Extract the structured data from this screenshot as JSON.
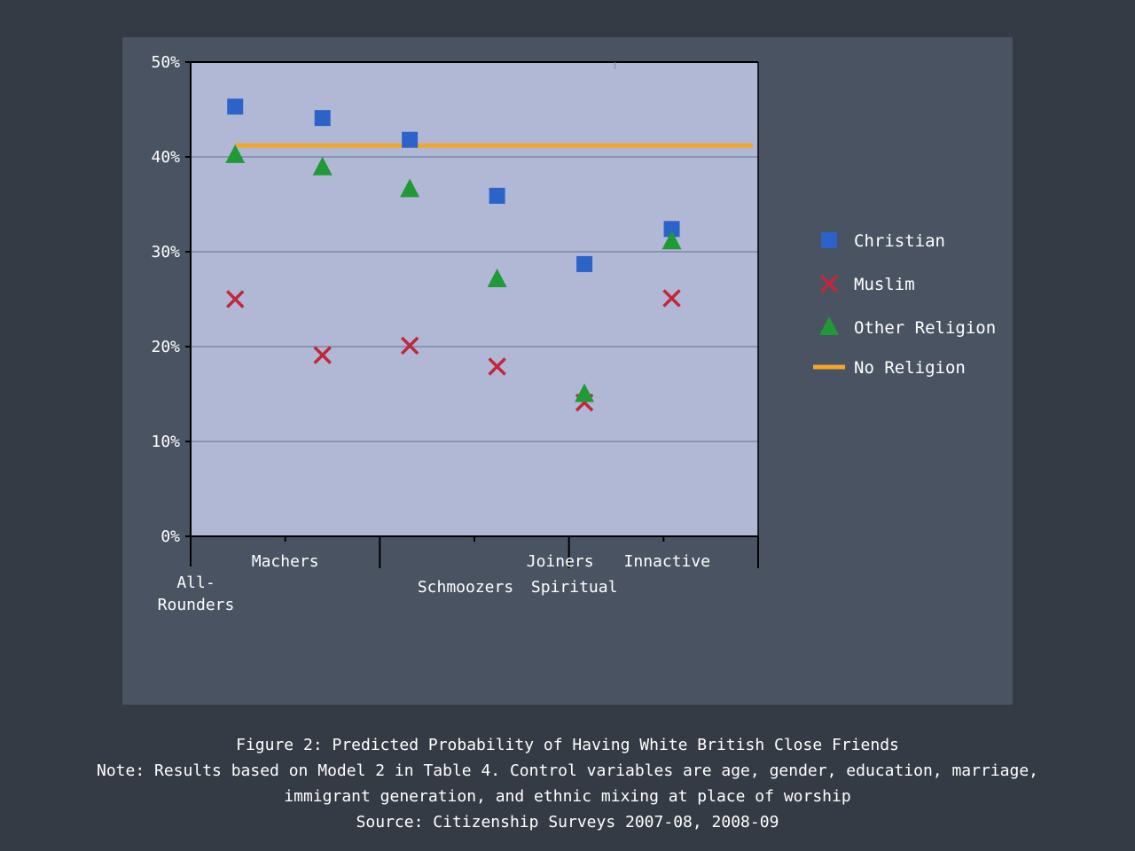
{
  "chart_data": {
    "type": "scatter",
    "categories": [
      "All-Rounders",
      "Machers",
      "Schmoozers",
      "Joiners",
      "Spiritual",
      "Inactive"
    ],
    "category_label_lines": [
      [
        "All-",
        "Rounders"
      ],
      [
        "Machers"
      ],
      [
        "Schmoozers"
      ],
      [
        "Joiners"
      ],
      [
        "Spiritual"
      ],
      [
        "Innactive"
      ]
    ],
    "ylim": [
      0,
      50
    ],
    "yticks": [
      "0%",
      "10%",
      "20%",
      "30%",
      "40%",
      "50%"
    ],
    "grid": true,
    "legend_position": "right",
    "series": [
      {
        "name": "Christian",
        "marker": "square",
        "color": "#2c63c9",
        "values": [
          45.3,
          44.1,
          41.8,
          35.9,
          28.7,
          32.4
        ]
      },
      {
        "name": "Muslim",
        "marker": "x",
        "color": "#c0283a",
        "values": [
          25.0,
          19.1,
          20.1,
          17.9,
          14.1,
          25.1
        ]
      },
      {
        "name": "Other Religion",
        "marker": "triangle",
        "color": "#1f9a36",
        "values": [
          40.2,
          38.9,
          36.6,
          27.1,
          15.0,
          31.1
        ]
      },
      {
        "name": "No Religion",
        "marker": "line",
        "color": "#f4a62a",
        "value": 41.2
      }
    ]
  },
  "caption": {
    "title": "Figure 2: Predicted Probability of Having White British Close Friends",
    "note_line1": "Note: Results based on Model 2 in Table 4. Control variables are age, gender, education, marriage,",
    "note_line2": "immigrant generation, and ethnic mixing at place of worship",
    "source": "Source: Citizenship Surveys 2007-08, 2008-09"
  }
}
